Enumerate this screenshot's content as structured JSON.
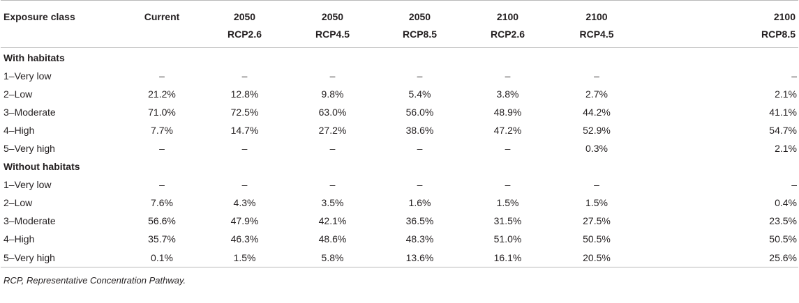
{
  "table": {
    "headers": [
      {
        "line1": "Exposure class",
        "line2": ""
      },
      {
        "line1": "Current",
        "line2": ""
      },
      {
        "line1": "2050",
        "line2": "RCP2.6"
      },
      {
        "line1": "2050",
        "line2": "RCP4.5"
      },
      {
        "line1": "2050",
        "line2": "RCP8.5"
      },
      {
        "line1": "2100",
        "line2": "RCP2.6"
      },
      {
        "line1": "2100",
        "line2": "RCP4.5"
      },
      {
        "line1": "2100",
        "line2": "RCP8.5"
      }
    ],
    "sections": [
      {
        "title": "With habitats",
        "rows": [
          {
            "label": "1–Very low",
            "values": [
              "–",
              "–",
              "–",
              "–",
              "–",
              "–",
              "–"
            ]
          },
          {
            "label": "2–Low",
            "values": [
              "21.2%",
              "12.8%",
              "9.8%",
              "5.4%",
              "3.8%",
              "2.7%",
              "2.1%"
            ]
          },
          {
            "label": "3–Moderate",
            "values": [
              "71.0%",
              "72.5%",
              "63.0%",
              "56.0%",
              "48.9%",
              "44.2%",
              "41.1%"
            ]
          },
          {
            "label": "4–High",
            "values": [
              "7.7%",
              "14.7%",
              "27.2%",
              "38.6%",
              "47.2%",
              "52.9%",
              "54.7%"
            ]
          },
          {
            "label": "5–Very high",
            "values": [
              "–",
              "–",
              "–",
              "–",
              "–",
              "0.3%",
              "2.1%"
            ]
          }
        ]
      },
      {
        "title": "Without habitats",
        "rows": [
          {
            "label": "1–Very low",
            "values": [
              "–",
              "–",
              "–",
              "–",
              "–",
              "–",
              "–"
            ]
          },
          {
            "label": "2–Low",
            "values": [
              "7.6%",
              "4.3%",
              "3.5%",
              "1.6%",
              "1.5%",
              "1.5%",
              "0.4%"
            ]
          },
          {
            "label": "3–Moderate",
            "values": [
              "56.6%",
              "47.9%",
              "42.1%",
              "36.5%",
              "31.5%",
              "27.5%",
              "23.5%"
            ]
          },
          {
            "label": "4–High",
            "values": [
              "35.7%",
              "46.3%",
              "48.6%",
              "48.3%",
              "51.0%",
              "50.5%",
              "50.5%"
            ]
          },
          {
            "label": "5–Very high",
            "values": [
              "0.1%",
              "1.5%",
              "5.8%",
              "13.6%",
              "16.1%",
              "20.5%",
              "25.6%"
            ]
          }
        ]
      }
    ]
  },
  "footnote": "RCP, Representative Concentration Pathway."
}
